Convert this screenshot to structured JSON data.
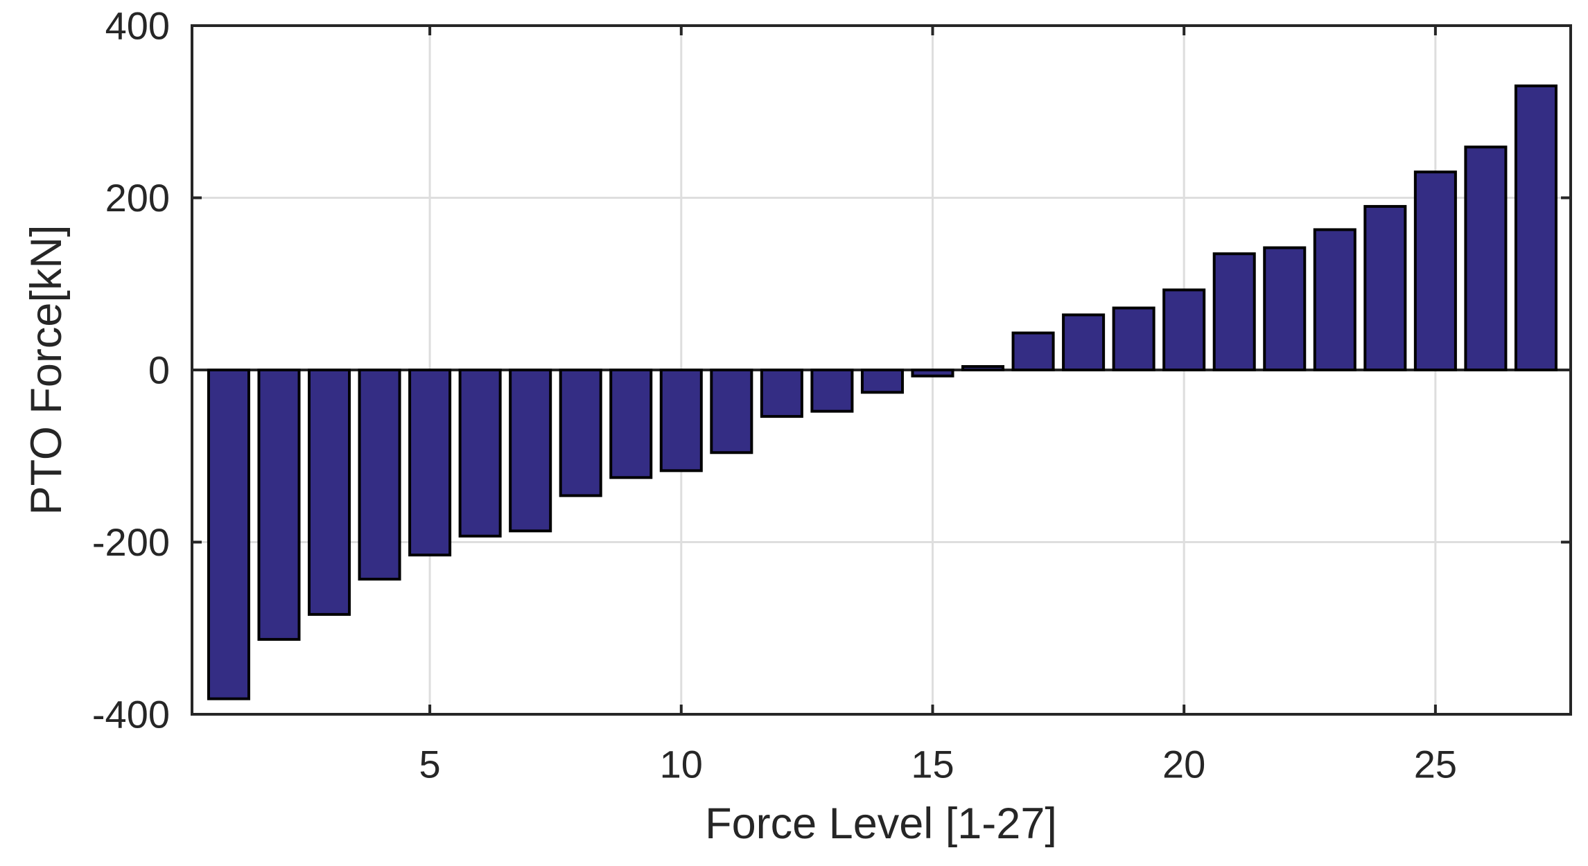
{
  "chart_data": {
    "type": "bar",
    "title": "",
    "xlabel": "Force Level [1-27]",
    "ylabel": "PTO Force[kN]",
    "categories": [
      1,
      2,
      3,
      4,
      5,
      6,
      7,
      8,
      9,
      10,
      11,
      12,
      13,
      14,
      15,
      16,
      17,
      18,
      19,
      20,
      21,
      22,
      23,
      24,
      25,
      26,
      27
    ],
    "values": [
      -382,
      -313,
      -284,
      -243,
      -215,
      -193,
      -187,
      -146,
      -125,
      -117,
      -96,
      -54,
      -48,
      -26,
      -7,
      4,
      43,
      64,
      72,
      93,
      135,
      142,
      163,
      190,
      230,
      259,
      330
    ],
    "xlim": [
      0.27,
      27.69
    ],
    "ylim": [
      -400,
      400
    ],
    "xticks": [
      5,
      10,
      15,
      20,
      25
    ],
    "yticks": [
      -400,
      -200,
      0,
      200,
      400
    ],
    "grid": "on",
    "legend_position": "none",
    "bar_width_fraction": 0.8,
    "colors": {
      "bar_fill": "#342D84",
      "bar_edge": "#000000",
      "axis": "#262626",
      "grid": "#DEDEDE",
      "background": "#FFFFFF"
    }
  }
}
